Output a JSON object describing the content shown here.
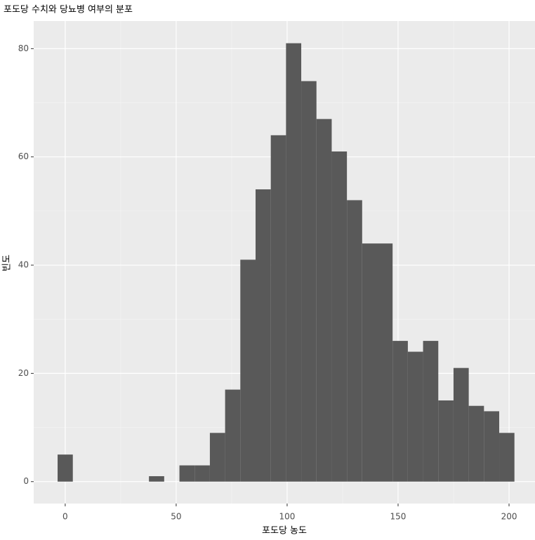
{
  "chart_data": {
    "type": "histogram",
    "title": "포도당 수치와 당뇨병 여부의 분포",
    "x_label": "포도당 농도",
    "y_label": "빈도",
    "bins": [
      -3.43,
      3.43,
      10.29,
      17.16,
      24.02,
      30.88,
      37.74,
      44.6,
      51.47,
      58.33,
      65.19,
      72.05,
      78.91,
      85.78,
      92.64,
      99.5,
      106.36,
      113.22,
      120.09,
      126.95,
      133.81,
      140.67,
      147.53,
      154.4,
      161.26,
      168.12,
      174.98,
      181.84,
      188.71,
      195.57,
      202.43
    ],
    "values": [
      5,
      0,
      0,
      0,
      0,
      0,
      1,
      0,
      3,
      3,
      9,
      17,
      41,
      54,
      64,
      81,
      74,
      67,
      61,
      52,
      44,
      44,
      26,
      24,
      26,
      15,
      21,
      14,
      13,
      9
    ],
    "color": "#595959",
    "xlim": [
      -14.2,
      211.7
    ],
    "ylim": [
      -4.05,
      85.1
    ],
    "xticks": [
      0,
      50,
      100,
      150,
      200
    ],
    "yticks": [
      0,
      20,
      40,
      60,
      80
    ],
    "x_minor_ticks": [
      25,
      75,
      125,
      175
    ],
    "y_minor_ticks": [
      10,
      30,
      50,
      70
    ],
    "grid": true
  }
}
